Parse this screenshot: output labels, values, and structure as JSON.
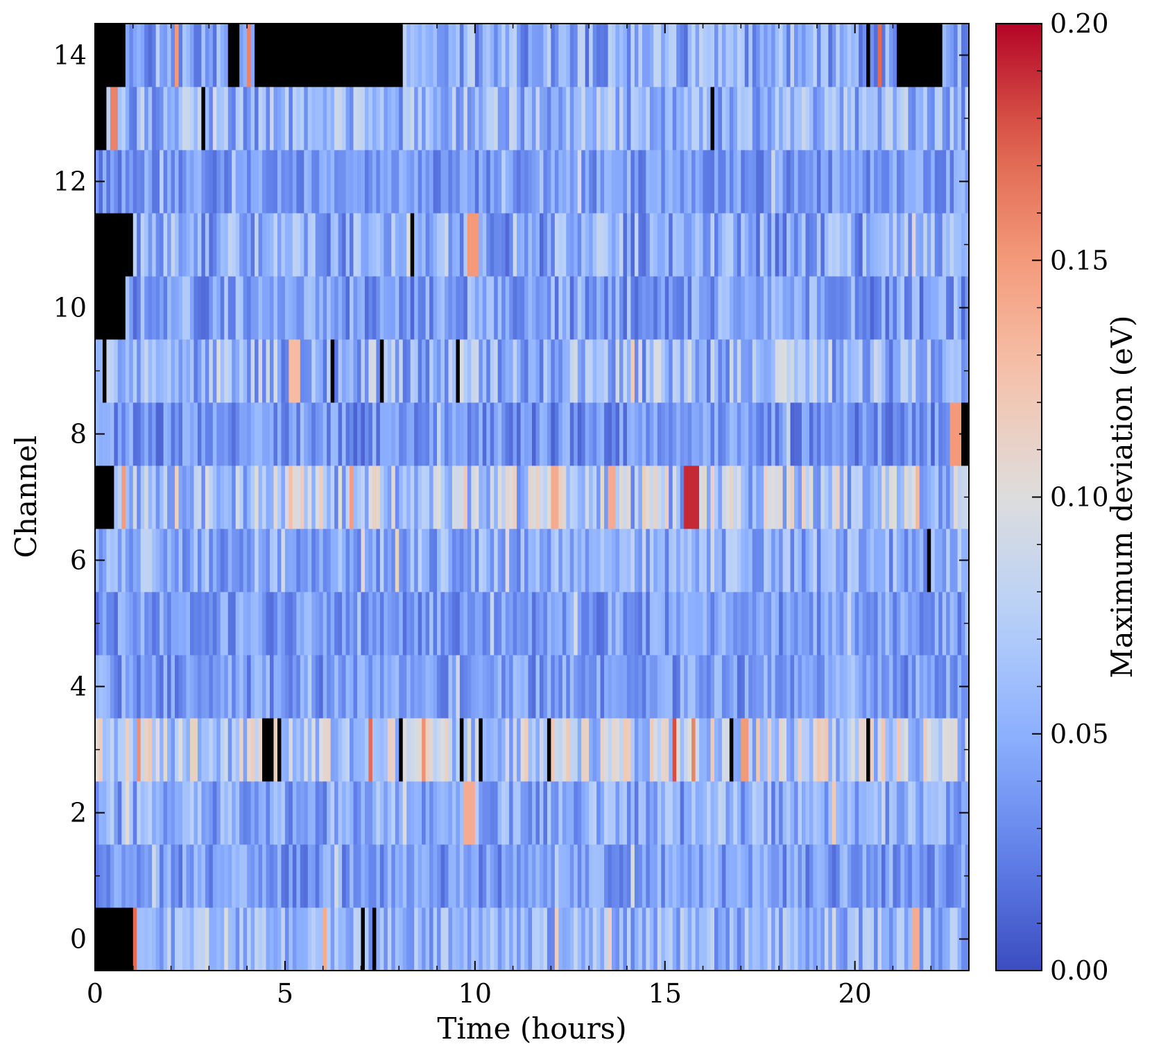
{
  "chart_data": {
    "type": "heatmap",
    "xlabel": "Time (hours)",
    "ylabel": "Channel",
    "colorbar_label": "Maximum deviation (eV)",
    "colormap": "coolwarm",
    "missing_color": "#000000",
    "xlim": [
      0,
      23
    ],
    "ylim": [
      -0.5,
      14.5
    ],
    "clim": [
      0.0,
      0.2
    ],
    "x_ticks": [
      0,
      5,
      10,
      15,
      20
    ],
    "x_tick_labels": [
      "0",
      "5",
      "10",
      "15",
      "20"
    ],
    "y_ticks": [
      0,
      2,
      4,
      6,
      8,
      10,
      12,
      14
    ],
    "y_tick_labels": [
      "0",
      "2",
      "4",
      "6",
      "8",
      "10",
      "12",
      "14"
    ],
    "colorbar_ticks": [
      0.0,
      0.05,
      0.1,
      0.15,
      0.2
    ],
    "colorbar_tick_labels": [
      "0.00",
      "0.05",
      "0.10",
      "0.15",
      "0.20"
    ],
    "channels": [
      0,
      1,
      2,
      3,
      4,
      5,
      6,
      7,
      8,
      9,
      10,
      11,
      12,
      13,
      14
    ],
    "time_bin_hours": 0.1,
    "n_time_bins": 230,
    "channel_base_level": [
      0.055,
      0.04,
      0.048,
      0.078,
      0.04,
      0.04,
      0.05,
      0.07,
      0.035,
      0.058,
      0.042,
      0.048,
      0.038,
      0.055,
      0.05
    ],
    "channel_spread": [
      0.03,
      0.025,
      0.03,
      0.045,
      0.025,
      0.025,
      0.03,
      0.045,
      0.025,
      0.04,
      0.03,
      0.035,
      0.022,
      0.035,
      0.035
    ],
    "highlights": [
      {
        "channel": 0,
        "start": 1.0,
        "end": 1.1,
        "value": 0.17
      },
      {
        "channel": 0,
        "start": 6.0,
        "end": 6.1,
        "value": 0.14
      },
      {
        "channel": 0,
        "start": 21.5,
        "end": 21.7,
        "value": 0.14
      },
      {
        "channel": 2,
        "start": 9.7,
        "end": 10.0,
        "value": 0.14
      },
      {
        "channel": 2,
        "start": 19.4,
        "end": 19.5,
        "value": 0.12
      },
      {
        "channel": 3,
        "start": 7.2,
        "end": 7.3,
        "value": 0.17
      },
      {
        "channel": 3,
        "start": 15.2,
        "end": 15.3,
        "value": 0.18
      },
      {
        "channel": 3,
        "start": 15.7,
        "end": 15.8,
        "value": 0.16
      },
      {
        "channel": 3,
        "start": 17.0,
        "end": 17.2,
        "value": 0.15
      },
      {
        "channel": 7,
        "start": 15.5,
        "end": 15.9,
        "value": 0.19
      },
      {
        "channel": 7,
        "start": 12.0,
        "end": 12.2,
        "value": 0.14
      },
      {
        "channel": 7,
        "start": 13.5,
        "end": 13.7,
        "value": 0.14
      },
      {
        "channel": 8,
        "start": 22.5,
        "end": 22.8,
        "value": 0.15
      },
      {
        "channel": 9,
        "start": 5.1,
        "end": 5.4,
        "value": 0.13
      },
      {
        "channel": 11,
        "start": 9.8,
        "end": 10.1,
        "value": 0.15
      },
      {
        "channel": 13,
        "start": 0.4,
        "end": 0.6,
        "value": 0.16
      },
      {
        "channel": 14,
        "start": 2.1,
        "end": 2.2,
        "value": 0.15
      },
      {
        "channel": 14,
        "start": 4.0,
        "end": 4.1,
        "value": 0.16
      },
      {
        "channel": 14,
        "start": 20.6,
        "end": 20.7,
        "value": 0.17
      }
    ],
    "missing_segments": [
      {
        "channel": 0,
        "start": 0.0,
        "end": 1.0
      },
      {
        "channel": 0,
        "start": 7.0,
        "end": 7.1
      },
      {
        "channel": 0,
        "start": 7.3,
        "end": 7.4
      },
      {
        "channel": 3,
        "start": 4.4,
        "end": 4.7
      },
      {
        "channel": 3,
        "start": 4.8,
        "end": 4.9
      },
      {
        "channel": 3,
        "start": 8.0,
        "end": 8.1
      },
      {
        "channel": 3,
        "start": 9.6,
        "end": 9.7
      },
      {
        "channel": 3,
        "start": 10.1,
        "end": 10.2
      },
      {
        "channel": 3,
        "start": 11.9,
        "end": 12.0
      },
      {
        "channel": 3,
        "start": 16.7,
        "end": 16.8
      },
      {
        "channel": 3,
        "start": 20.3,
        "end": 20.4
      },
      {
        "channel": 6,
        "start": 21.9,
        "end": 22.0
      },
      {
        "channel": 7,
        "start": 0.0,
        "end": 0.5
      },
      {
        "channel": 8,
        "start": 22.8,
        "end": 23.0
      },
      {
        "channel": 9,
        "start": 0.2,
        "end": 0.3
      },
      {
        "channel": 9,
        "start": 6.2,
        "end": 6.3
      },
      {
        "channel": 9,
        "start": 7.5,
        "end": 7.6
      },
      {
        "channel": 9,
        "start": 9.5,
        "end": 9.6
      },
      {
        "channel": 10,
        "start": 0.0,
        "end": 0.8
      },
      {
        "channel": 11,
        "start": 0.0,
        "end": 1.0
      },
      {
        "channel": 11,
        "start": 8.3,
        "end": 8.4
      },
      {
        "channel": 13,
        "start": 0.0,
        "end": 0.3
      },
      {
        "channel": 13,
        "start": 2.8,
        "end": 2.9
      },
      {
        "channel": 13,
        "start": 16.2,
        "end": 16.3
      },
      {
        "channel": 14,
        "start": 0.0,
        "end": 0.8
      },
      {
        "channel": 14,
        "start": 3.5,
        "end": 3.8
      },
      {
        "channel": 14,
        "start": 4.2,
        "end": 8.1
      },
      {
        "channel": 14,
        "start": 20.3,
        "end": 20.4
      },
      {
        "channel": 14,
        "start": 21.1,
        "end": 22.3
      }
    ]
  }
}
